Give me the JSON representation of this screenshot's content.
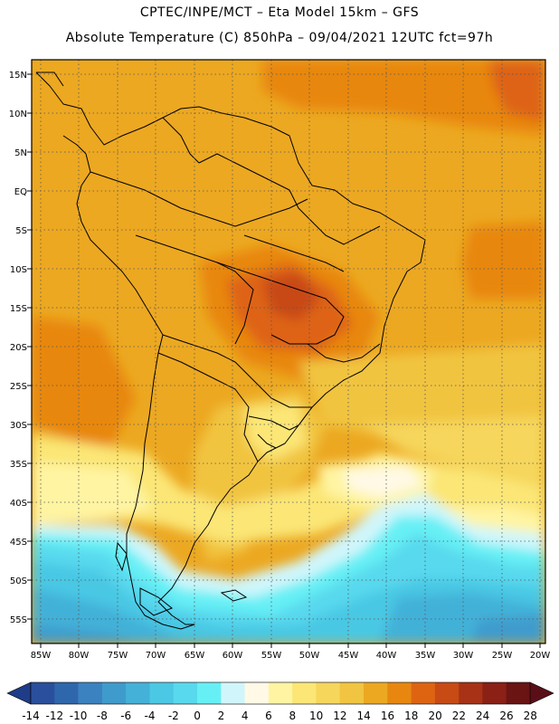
{
  "header": {
    "line1": "CPTEC/INPE/MCT –  Eta Model 15km – GFS",
    "line2": "Absolute Temperature (C) 850hPa – 09/04/2021 12UTC fct=97h"
  },
  "map": {
    "lat_labels": [
      "15N",
      "10N",
      "5N",
      "EQ",
      "5S",
      "10S",
      "15S",
      "20S",
      "25S",
      "30S",
      "35S",
      "40S",
      "45S",
      "50S",
      "55S"
    ],
    "lon_labels": [
      "85W",
      "80W",
      "75W",
      "70W",
      "65W",
      "60W",
      "55W",
      "50W",
      "45W",
      "40W",
      "35W",
      "30W",
      "25W",
      "20W"
    ]
  },
  "colorbar": {
    "ticks": [
      "-14",
      "-12",
      "-10",
      "-8",
      "-6",
      "-4",
      "-2",
      "0",
      "2",
      "4",
      "6",
      "8",
      "10",
      "12",
      "14",
      "16",
      "18",
      "20",
      "22",
      "24",
      "26",
      "28"
    ],
    "colors": [
      "#2a4f9c",
      "#2f67ad",
      "#3a82c0",
      "#3f9bcc",
      "#43b1d8",
      "#4ac8e4",
      "#58d9ee",
      "#66f0f5",
      "#d0f6fb",
      "#fff9e6",
      "#fff4a2",
      "#fbe676",
      "#f6d65b",
      "#f1c441",
      "#eca821",
      "#e8870f",
      "#de6412",
      "#c84a15",
      "#a83216",
      "#8a2016",
      "#6a1414"
    ]
  }
}
